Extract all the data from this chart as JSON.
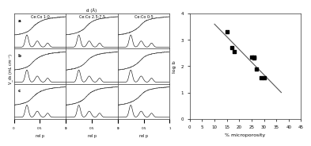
{
  "left_title": "d (Å)",
  "left_ylabel": "V_ds (mL cm⁻³)",
  "col_labels": [
    "Ce:Co 1:0",
    "Ce:Co 2.5:7.5",
    "Ce:Co 0:5"
  ],
  "row_labels": [
    "a",
    "b",
    "c"
  ],
  "right_xlabel": "% microporosity",
  "right_ylabel": "log b",
  "scatter_x": [
    15,
    17,
    18,
    25,
    26,
    26,
    27,
    29,
    30
  ],
  "scatter_y": [
    3.3,
    2.7,
    2.55,
    2.35,
    2.3,
    2.35,
    1.9,
    1.55,
    1.55
  ],
  "trendline_x": [
    10,
    37
  ],
  "trendline_y": [
    3.6,
    1.0
  ],
  "xlim_right": [
    0,
    45
  ],
  "ylim_right": [
    0,
    4
  ],
  "xticks_right": [
    0,
    5,
    10,
    15,
    20,
    25,
    30,
    35,
    40,
    45
  ],
  "yticks_right": [
    0,
    1,
    2,
    3,
    4
  ],
  "background_color": "#ffffff",
  "scatter_color": "#000000",
  "line_color": "#555555",
  "grid_color": "#cccccc"
}
